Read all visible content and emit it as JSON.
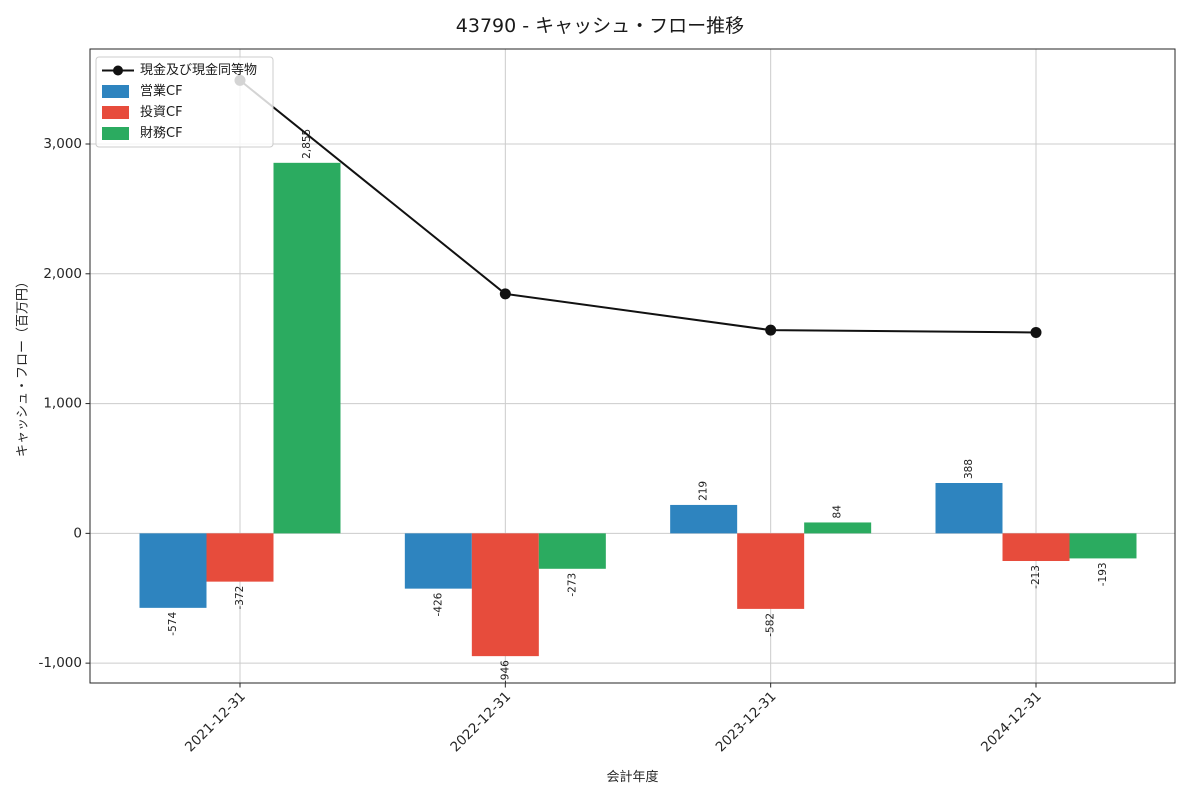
{
  "title": "43790 - キャッシュ・フロー推移",
  "chart_data": {
    "type": "bar+line",
    "title": "43790 - キャッシュ・フロー推移",
    "xlabel": "会計年度",
    "ylabel": "キャッシュ・フロー（百万円）",
    "categories": [
      "2021-12-31",
      "2022-12-31",
      "2023-12-31",
      "2024-12-31"
    ],
    "series": [
      {
        "name": "現金及び現金同等物",
        "type": "line",
        "color": "#111111",
        "values": [
          3490,
          1845,
          1566,
          1548
        ],
        "note": "values estimated from pixel positions; no data labels shown"
      },
      {
        "name": "営業CF",
        "type": "bar",
        "color": "#2e84bf",
        "values": [
          -574,
          -426,
          219,
          388
        ]
      },
      {
        "name": "投資CF",
        "type": "bar",
        "color": "#e74c3c",
        "values": [
          -372,
          -946,
          -582,
          -213
        ]
      },
      {
        "name": "財務CF",
        "type": "bar",
        "color": "#2bab60",
        "values": [
          2855,
          -273,
          84,
          -193
        ]
      }
    ],
    "bar_value_labels": true,
    "yticks": [
      -1000,
      0,
      1000,
      2000,
      3000
    ],
    "ylim": [
      -1153,
      3732
    ],
    "grid": true,
    "grid_color": "#cccccc",
    "legend_position": "upper left",
    "legend_entries": [
      "現金及び現金同等物",
      "営業CF",
      "投資CF",
      "財務CF"
    ]
  }
}
